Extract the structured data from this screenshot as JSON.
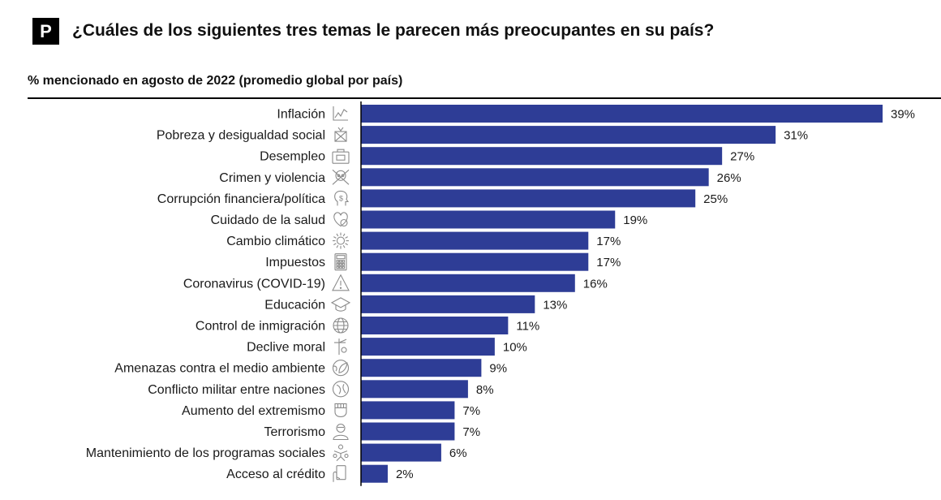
{
  "header": {
    "badge": "P",
    "title": "¿Cuáles de los siguientes tres temas le parecen más preocupantes en su país?",
    "subtitle": "% mencionado en agosto de 2022 (promedio global por país)"
  },
  "colors": {
    "bar": "#2e3d96",
    "axis": "#000000",
    "icon": "#8a8a8a"
  },
  "chart_data": {
    "type": "bar",
    "orientation": "horizontal",
    "title": "¿Cuáles de los siguientes tres temas le parecen más preocupantes en su país?",
    "subtitle": "% mencionado en agosto de 2022 (promedio global por país)",
    "xlim": [
      0,
      39
    ],
    "grid": false,
    "categories": [
      "Inflación",
      "Pobreza y desigualdad social",
      "Desempleo",
      "Crimen y violencia",
      "Corrupción financiera/política",
      "Cuidado de la salud",
      "Cambio climático",
      "Impuestos",
      "Coronavirus (COVID-19)",
      "Educación",
      "Control de inmigración",
      "Declive moral",
      "Amenazas contra el medio ambiente",
      "Conflicto militar entre naciones",
      "Aumento del extremismo",
      "Terrorismo",
      "Mantenimiento de los programas sociales",
      "Acceso al crédito"
    ],
    "values": [
      39,
      31,
      27,
      26,
      25,
      19,
      17,
      17,
      16,
      13,
      11,
      10,
      9,
      8,
      7,
      7,
      6,
      2
    ],
    "value_labels": [
      "39%",
      "31%",
      "27%",
      "26%",
      "25%",
      "19%",
      "17%",
      "17%",
      "16%",
      "13%",
      "11%",
      "10%",
      "9%",
      "8%",
      "7%",
      "7%",
      "6%",
      "2%"
    ],
    "icons": [
      "chart-icon",
      "poverty-icon",
      "briefcase-icon",
      "skull-icon",
      "money-head-icon",
      "health-icon",
      "sun-icon",
      "calculator-icon",
      "warning-icon",
      "graduation-cap-icon",
      "globe-icon",
      "moral-icon",
      "earth-leaf-icon",
      "conflict-icon",
      "fist-icon",
      "terrorist-icon",
      "social-programs-icon",
      "credit-icon"
    ]
  }
}
